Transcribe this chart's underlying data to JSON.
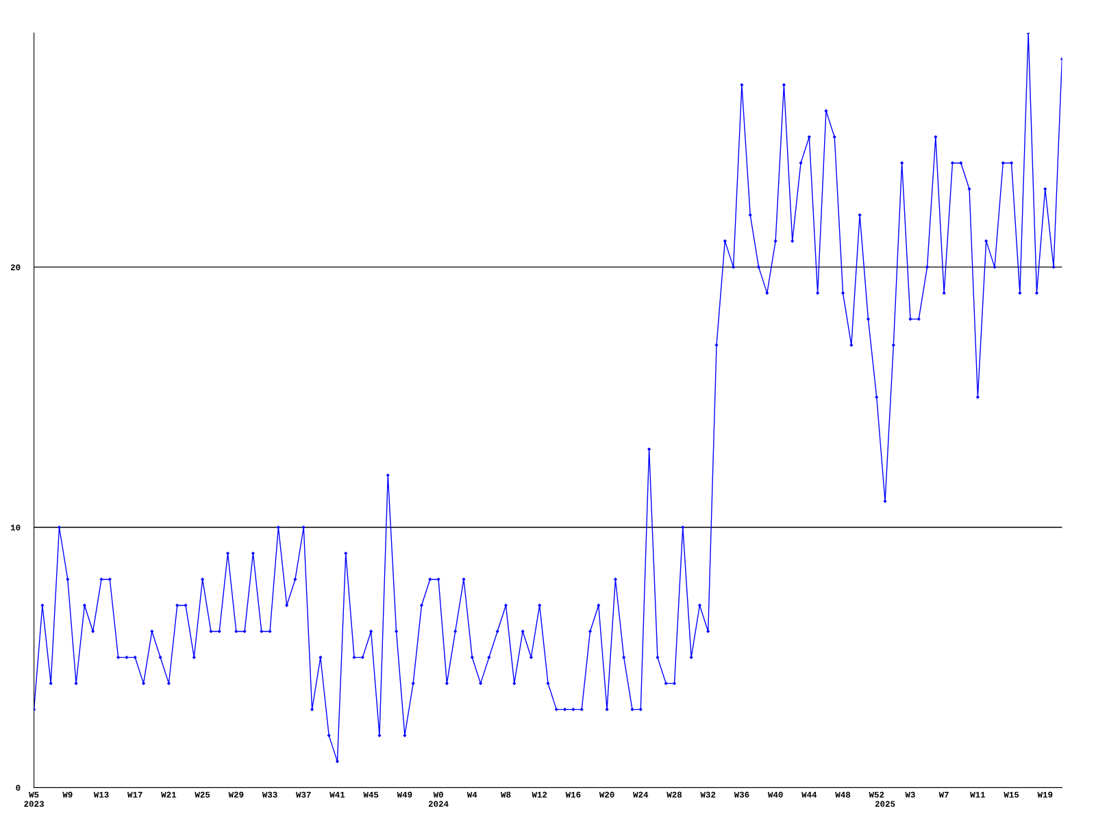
{
  "chart_data": {
    "type": "line",
    "categories": [
      "W5\n2023",
      null,
      null,
      null,
      "W9",
      null,
      null,
      null,
      "W13",
      null,
      null,
      null,
      "W17",
      null,
      null,
      null,
      "W21",
      null,
      null,
      null,
      "W25",
      null,
      null,
      null,
      "W29",
      null,
      null,
      null,
      "W33",
      null,
      null,
      null,
      "W37",
      null,
      null,
      null,
      "W41",
      null,
      null,
      null,
      "W45",
      null,
      null,
      null,
      "W49",
      null,
      null,
      null,
      "W0\n2024",
      null,
      null,
      null,
      "W4",
      null,
      null,
      null,
      "W8",
      null,
      null,
      null,
      "W12",
      null,
      null,
      null,
      "W16",
      null,
      null,
      null,
      "W20",
      null,
      null,
      null,
      "W24",
      null,
      null,
      null,
      "W28",
      null,
      null,
      null,
      "W32",
      null,
      null,
      null,
      "W36",
      null,
      null,
      null,
      "W40",
      null,
      null,
      null,
      "W44",
      null,
      null,
      null,
      "W48",
      null,
      null,
      null,
      "W52",
      "\n2025",
      null,
      null,
      "W3",
      null,
      null,
      null,
      "W7",
      null,
      null,
      null,
      "W11",
      null,
      null,
      null,
      "W15",
      null,
      null,
      null,
      "W19",
      null,
      null
    ],
    "series": [
      {
        "color": "#0000ff",
        "values": [
          3,
          7,
          4,
          10,
          8,
          4,
          7,
          6,
          8,
          8,
          5,
          5,
          5,
          4,
          6,
          5,
          4,
          7,
          7,
          5,
          8,
          6,
          6,
          9,
          6,
          6,
          9,
          6,
          6,
          10,
          7,
          8,
          10,
          3,
          5,
          2,
          1,
          9,
          5,
          5,
          6,
          2,
          12,
          6,
          2,
          4,
          7,
          8,
          8,
          4,
          6,
          8,
          5,
          4,
          5,
          6,
          7,
          4,
          6,
          5,
          7,
          4,
          3,
          3,
          3,
          3,
          6,
          7,
          3,
          8,
          5,
          3,
          3,
          13,
          5,
          4,
          4,
          10,
          5,
          7,
          6,
          17,
          21,
          20,
          27,
          22,
          20,
          19,
          21,
          27,
          21,
          24,
          25,
          19,
          26,
          25,
          19,
          17,
          22,
          18,
          15,
          11,
          17,
          24,
          18,
          18,
          20,
          25,
          19,
          24,
          24,
          23,
          15,
          21,
          20,
          24,
          24,
          19,
          29,
          19,
          23,
          20,
          28
        ]
      }
    ],
    "ylim": [
      0,
      29
    ],
    "yticks": [
      0,
      10,
      20
    ],
    "grid": "y",
    "marker": "diamond",
    "line_style": "solid"
  }
}
